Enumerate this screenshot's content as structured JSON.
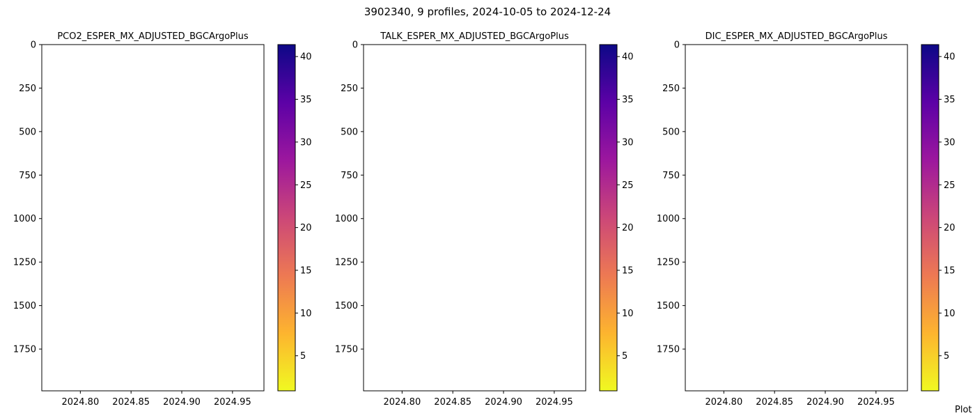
{
  "figure": {
    "title": "3902340, 9 profiles, 2024-10-05 to 2024-12-24",
    "footer_text": "Plot"
  },
  "colormap": {
    "name": "plasma_r",
    "stops": [
      "#f0f921",
      "#fdb42f",
      "#ed7953",
      "#cc4778",
      "#9c179e",
      "#5c01a6",
      "#0d0887"
    ]
  },
  "chart_data": [
    {
      "type": "scatter",
      "title": "PCO2_ESPER_MX_ADJUSTED_BGCArgoPlus",
      "xlabel": "",
      "ylabel": "",
      "x_ticks": [
        "2024.80",
        "2024.85",
        "2024.90",
        "2024.95"
      ],
      "x_tick_values": [
        2024.8,
        2024.85,
        2024.9,
        2024.95
      ],
      "xlim": [
        2024.762,
        2024.981
      ],
      "y_ticks": [
        "0",
        "250",
        "500",
        "750",
        "1000",
        "1250",
        "1500",
        "1750"
      ],
      "y_tick_values": [
        0,
        250,
        500,
        750,
        1000,
        1250,
        1500,
        1750
      ],
      "ylim": [
        1990,
        0
      ],
      "y_inverted": true,
      "colorbar": {
        "ticks": [
          "5",
          "10",
          "15",
          "20",
          "25",
          "30",
          "35",
          "40"
        ],
        "tick_values": [
          5,
          10,
          15,
          20,
          25,
          30,
          35,
          40
        ],
        "range": [
          0.9,
          41.4
        ]
      },
      "points": [],
      "grid": false
    },
    {
      "type": "scatter",
      "title": "TALK_ESPER_MX_ADJUSTED_BGCArgoPlus",
      "xlabel": "",
      "ylabel": "",
      "x_ticks": [
        "2024.80",
        "2024.85",
        "2024.90",
        "2024.95"
      ],
      "x_tick_values": [
        2024.8,
        2024.85,
        2024.9,
        2024.95
      ],
      "xlim": [
        2024.762,
        2024.981
      ],
      "y_ticks": [
        "0",
        "250",
        "500",
        "750",
        "1000",
        "1250",
        "1500",
        "1750"
      ],
      "y_tick_values": [
        0,
        250,
        500,
        750,
        1000,
        1250,
        1500,
        1750
      ],
      "ylim": [
        1990,
        0
      ],
      "y_inverted": true,
      "colorbar": {
        "ticks": [
          "5",
          "10",
          "15",
          "20",
          "25",
          "30",
          "35",
          "40"
        ],
        "tick_values": [
          5,
          10,
          15,
          20,
          25,
          30,
          35,
          40
        ],
        "range": [
          0.9,
          41.4
        ]
      },
      "points": [],
      "grid": false
    },
    {
      "type": "scatter",
      "title": "DIC_ESPER_MX_ADJUSTED_BGCArgoPlus",
      "xlabel": "",
      "ylabel": "",
      "x_ticks": [
        "2024.80",
        "2024.85",
        "2024.90",
        "2024.95"
      ],
      "x_tick_values": [
        2024.8,
        2024.85,
        2024.9,
        2024.95
      ],
      "xlim": [
        2024.762,
        2024.981
      ],
      "y_ticks": [
        "0",
        "250",
        "500",
        "750",
        "1000",
        "1250",
        "1500",
        "1750"
      ],
      "y_tick_values": [
        0,
        250,
        500,
        750,
        1000,
        1250,
        1500,
        1750
      ],
      "ylim": [
        1990,
        0
      ],
      "y_inverted": true,
      "colorbar": {
        "ticks": [
          "5",
          "10",
          "15",
          "20",
          "25",
          "30",
          "35",
          "40"
        ],
        "tick_values": [
          5,
          10,
          15,
          20,
          25,
          30,
          35,
          40
        ],
        "range": [
          0.9,
          41.4
        ]
      },
      "points": [],
      "grid": false
    }
  ]
}
